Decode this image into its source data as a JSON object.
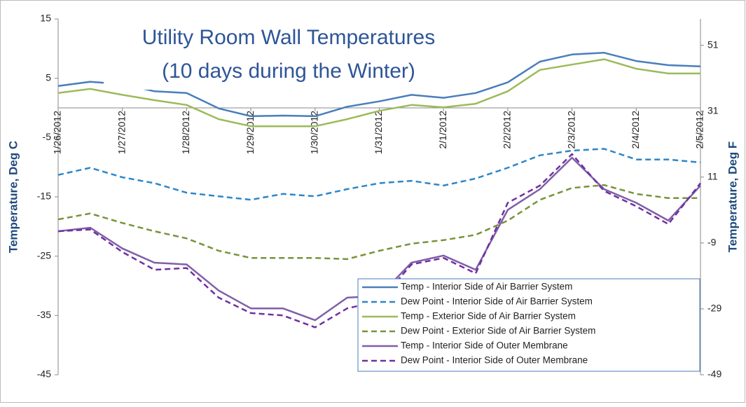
{
  "chart_data": {
    "type": "line",
    "title": [
      "Utility Room Wall Temperatures",
      "(10 days during the Winter)"
    ],
    "ylabel": "Temperature, Deg C",
    "y2label": "Temperature, Deg F",
    "x": [
      0,
      0.5,
      1,
      1.5,
      2,
      2.5,
      3,
      3.5,
      4,
      4.5,
      5,
      5.5,
      6,
      6.5,
      7,
      7.5,
      8,
      8.5,
      9,
      9.5,
      10
    ],
    "xlim": [
      0,
      10
    ],
    "xticks": [
      {
        "value": 0,
        "label": "1/26/2012"
      },
      {
        "value": 1,
        "label": "1/27/2012"
      },
      {
        "value": 2,
        "label": "1/28/2012"
      },
      {
        "value": 3,
        "label": "1/29/2012"
      },
      {
        "value": 4,
        "label": "1/30/2012"
      },
      {
        "value": 5,
        "label": "1/31/2012"
      },
      {
        "value": 6,
        "label": "2/1/2012"
      },
      {
        "value": 7,
        "label": "2/2/2012"
      },
      {
        "value": 8,
        "label": "2/3/2012"
      },
      {
        "value": 9,
        "label": "2/4/2012"
      },
      {
        "value": 10,
        "label": "2/5/2012"
      }
    ],
    "ylim": [
      -45,
      15
    ],
    "yticks": [
      15,
      5,
      -5,
      -15,
      -25,
      -35,
      -45
    ],
    "y2lim": [
      -49,
      59
    ],
    "y2ticks": [
      51,
      31,
      11,
      -9,
      -29,
      -49
    ],
    "series": [
      {
        "name": "Temp - Interior Side of Air Barrier System",
        "color": "#4a7ebb",
        "dashed": false,
        "values": [
          3.7,
          4.4,
          4.0,
          2.8,
          2.5,
          -0.1,
          -1.4,
          -1.3,
          -1.4,
          0.2,
          1.1,
          2.2,
          1.7,
          2.5,
          4.3,
          7.8,
          9.0,
          9.3,
          7.9,
          7.2,
          7.0
        ]
      },
      {
        "name": "Dew Point - Interior Side of Air Barrier System",
        "color": "#2e86c8",
        "dashed": true,
        "values": [
          -11.3,
          -10.1,
          -11.7,
          -12.7,
          -14.3,
          -14.9,
          -15.5,
          -14.5,
          -14.9,
          -13.7,
          -12.7,
          -12.3,
          -13.1,
          -11.9,
          -10.1,
          -8.0,
          -7.2,
          -6.9,
          -8.7,
          -8.7,
          -9.2
        ]
      },
      {
        "name": "Temp - Exterior Side of Air Barrier System",
        "color": "#9bbb59",
        "dashed": false,
        "values": [
          2.5,
          3.2,
          2.2,
          1.3,
          0.5,
          -1.9,
          -3.1,
          -3.1,
          -3.1,
          -1.9,
          -0.5,
          0.5,
          0.1,
          0.7,
          2.8,
          6.4,
          7.3,
          8.2,
          6.6,
          5.8,
          5.8
        ]
      },
      {
        "name": "Dew Point - Exterior Side of Air Barrier System",
        "color": "#77933c",
        "dashed": true,
        "values": [
          -18.8,
          -17.8,
          -19.4,
          -20.8,
          -22.0,
          -24.1,
          -25.3,
          -25.3,
          -25.3,
          -25.5,
          -24.1,
          -22.9,
          -22.3,
          -21.4,
          -19.0,
          -15.5,
          -13.5,
          -13.0,
          -14.5,
          -15.2,
          -15.2
        ]
      },
      {
        "name": "Temp - Interior Side of Outer Membrane",
        "color": "#7f5fa8",
        "dashed": false,
        "values": [
          -20.8,
          -20.2,
          -23.7,
          -26.1,
          -26.4,
          -30.8,
          -33.8,
          -33.8,
          -35.8,
          -32.0,
          -31.7,
          -26.1,
          -24.9,
          -27.3,
          -17.2,
          -13.7,
          -8.4,
          -13.7,
          -16.0,
          -19.0,
          -13.1
        ]
      },
      {
        "name": "Dew Point - Interior Side of Outer Membrane",
        "color": "#7030a0",
        "dashed": true,
        "values": [
          -20.8,
          -20.5,
          -24.3,
          -27.3,
          -27.0,
          -32.0,
          -34.6,
          -35.0,
          -37.0,
          -33.8,
          -32.6,
          -26.4,
          -25.3,
          -27.9,
          -16.0,
          -13.1,
          -7.8,
          -14.0,
          -16.6,
          -19.6,
          -12.7
        ]
      }
    ]
  }
}
